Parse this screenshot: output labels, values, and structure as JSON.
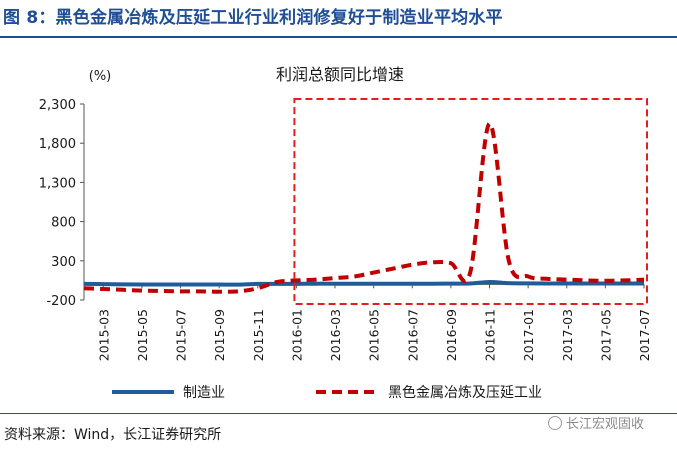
{
  "figure_title": "图 8：黑色金属冶炼及压延工业行业利润修复好于制造业平均水平",
  "source_note": "资料来源：Wind，长江证券研究所",
  "watermark": "长江宏观固收",
  "colors": {
    "title_blue": "#1f4e96",
    "manufacturing": "#1f5c99",
    "ferrous": "#c00000",
    "highlight_box": "#e02020"
  },
  "chart_data": {
    "type": "line",
    "title": "利润总额同比增速",
    "ylabel": "(%)",
    "xlabel": "",
    "ylim": [
      -200,
      2300
    ],
    "yticks": [
      -200,
      300,
      800,
      1300,
      1800,
      2300
    ],
    "ytick_labels": [
      "-200",
      "300",
      "800",
      "1,300",
      "1,800",
      "2,300"
    ],
    "x_tick_labels": [
      "2015-03",
      "2015-05",
      "2015-07",
      "2015-09",
      "2015-11",
      "2016-01",
      "2016-03",
      "2016-05",
      "2016-07",
      "2016-09",
      "2016-11",
      "2017-01",
      "2017-03",
      "2017-05",
      "2017-07"
    ],
    "x": [
      "2015-02",
      "2015-03",
      "2015-04",
      "2015-05",
      "2015-06",
      "2015-07",
      "2015-08",
      "2015-09",
      "2015-10",
      "2015-11",
      "2015-12",
      "2016-01",
      "2016-02",
      "2016-03",
      "2016-04",
      "2016-05",
      "2016-06",
      "2016-07",
      "2016-08",
      "2016-09",
      "2016-10",
      "2016-11",
      "2016-12",
      "2017-01",
      "2017-02",
      "2017-03",
      "2017-04",
      "2017-05",
      "2017-06",
      "2017-07"
    ],
    "series": [
      {
        "name": "制造业",
        "style": "solid",
        "values": [
          5,
          3,
          0,
          -2,
          -2,
          -3,
          -2,
          -3,
          -4,
          5,
          5,
          6,
          8,
          8,
          8,
          8,
          8,
          8,
          8,
          9,
          10,
          30,
          15,
          12,
          10,
          10,
          10,
          10,
          10,
          10
        ]
      },
      {
        "name": "黑色金属冶炼及压延工业",
        "style": "dashed",
        "values": [
          -50,
          -60,
          -70,
          -80,
          -85,
          -90,
          -90,
          -95,
          -90,
          -50,
          30,
          50,
          60,
          80,
          100,
          150,
          200,
          250,
          280,
          270,
          150,
          2050,
          300,
          100,
          70,
          60,
          50,
          45,
          50,
          60
        ]
      }
    ],
    "highlight_range": [
      "2016-01",
      "2017-07"
    ],
    "legend_position": "bottom"
  }
}
